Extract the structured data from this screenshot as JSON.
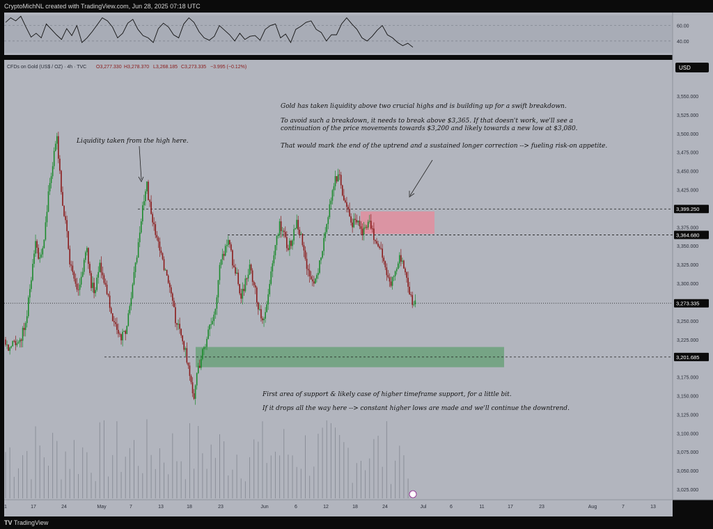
{
  "header": {
    "watermark": "CryptoMichNL created with TradingView.com, Jun 28, 2025 07:18 UTC"
  },
  "footer": {
    "brand": "TradingView"
  },
  "legend": {
    "symbol": "CFDs on Gold (US$ / OZ) · 4h · TVC",
    "open": "O3,277.330",
    "high": "H3,278.370",
    "low": "L3,268.185",
    "close": "C3,273.335",
    "change": "−3.995 (−0.12%)"
  },
  "currency": "USD",
  "annotations": {
    "liquidity_note": "Liquidity taken from the high here.",
    "main_1": "Gold has taken liquidity above two crucial highs and is building up for a swift breakdown.",
    "main_2a": "To avoid such a breakdown, it needs to break above $3,365. If that doesn't work, we'll see a",
    "main_2b": "continuation of the price movements towards $3,200 and likely towards a new low at $3,080.",
    "main_3": "That would mark the end of the uptrend and a sustained longer correction --> fueling risk-on appetite.",
    "support_1": "First area of support & likely case of higher timeframe support, for a little bit.",
    "support_2": "If it drops all the way here --> constant higher lows are made and we'll continue the downtrend."
  },
  "colors": {
    "background": "#b2b5be",
    "up": "#1b8a2c",
    "down": "#8a1a1a",
    "resistance_zone": "#e88a9a",
    "support_zone": "#4f9a5f",
    "axis_text": "#2a2e39",
    "label_bg": "#0b0b0b"
  },
  "chart_data": {
    "type": "candlestick",
    "timeframe": "4h",
    "x_ticks": [
      "1",
      "17",
      "24",
      "May",
      "7",
      "13",
      "18",
      "23",
      "Jun",
      "6",
      "12",
      "18",
      "24",
      "Jul",
      "6",
      "11",
      "17",
      "23",
      "Aug",
      "7",
      "13"
    ],
    "y_ticks": [
      3025,
      3050,
      3075,
      3100,
      3125,
      3150,
      3175,
      3200,
      3225,
      3250,
      3275,
      3300,
      3325,
      3350,
      3375,
      3400,
      3425,
      3450,
      3475,
      3500,
      3525,
      3550
    ],
    "y_tick_labels": [
      "3,025.000",
      "3,050.000",
      "3,075.000",
      "3,100.000",
      "3,125.000",
      "3,150.000",
      "3,175.000",
      "3,200.000",
      "3,225.000",
      "3,250.000",
      "3,275.000",
      "3,300.000",
      "3,325.000",
      "3,350.000",
      "3,375.000",
      "3,400.000",
      "3,425.000",
      "3,450.000",
      "3,475.000",
      "3,500.000",
      "3,525.000",
      "3,550.000"
    ],
    "ylim": [
      3005,
      3590
    ],
    "price_levels": [
      {
        "value": 3399.25,
        "label": "3,399.250",
        "style": "dashed"
      },
      {
        "value": 3364.68,
        "label": "3,364.680",
        "style": "dashed"
      },
      {
        "value": 3273.335,
        "label": "3,273.335",
        "style": "dotted"
      },
      {
        "value": 3201.685,
        "label": "3,201.685",
        "style": "dashed"
      }
    ],
    "zones": [
      {
        "name": "resistance",
        "low": 3366,
        "high": 3396
      },
      {
        "name": "support",
        "low": 3188,
        "high": 3215
      }
    ],
    "price_path": [
      [
        0,
        3225
      ],
      [
        3,
        3210
      ],
      [
        6,
        3228
      ],
      [
        9,
        3215
      ],
      [
        12,
        3235
      ],
      [
        15,
        3260
      ],
      [
        18,
        3310
      ],
      [
        21,
        3350
      ],
      [
        24,
        3330
      ],
      [
        27,
        3360
      ],
      [
        30,
        3420
      ],
      [
        33,
        3460
      ],
      [
        36,
        3495
      ],
      [
        39,
        3420
      ],
      [
        42,
        3380
      ],
      [
        45,
        3330
      ],
      [
        48,
        3300
      ],
      [
        51,
        3290
      ],
      [
        54,
        3320
      ],
      [
        57,
        3345
      ],
      [
        60,
        3300
      ],
      [
        63,
        3290
      ],
      [
        66,
        3330
      ],
      [
        69,
        3300
      ],
      [
        72,
        3285
      ],
      [
        75,
        3250
      ],
      [
        78,
        3240
      ],
      [
        81,
        3225
      ],
      [
        84,
        3235
      ],
      [
        87,
        3270
      ],
      [
        90,
        3310
      ],
      [
        93,
        3350
      ],
      [
        96,
        3400
      ],
      [
        99,
        3430
      ],
      [
        102,
        3390
      ],
      [
        105,
        3370
      ],
      [
        108,
        3345
      ],
      [
        111,
        3320
      ],
      [
        114,
        3300
      ],
      [
        117,
        3270
      ],
      [
        120,
        3245
      ],
      [
        123,
        3230
      ],
      [
        126,
        3210
      ],
      [
        129,
        3180
      ],
      [
        132,
        3150
      ],
      [
        135,
        3185
      ],
      [
        138,
        3210
      ],
      [
        141,
        3225
      ],
      [
        144,
        3250
      ],
      [
        147,
        3270
      ],
      [
        150,
        3320
      ],
      [
        153,
        3340
      ],
      [
        156,
        3360
      ],
      [
        159,
        3330
      ],
      [
        162,
        3310
      ],
      [
        165,
        3285
      ],
      [
        168,
        3300
      ],
      [
        171,
        3320
      ],
      [
        174,
        3300
      ],
      [
        177,
        3265
      ],
      [
        180,
        3250
      ],
      [
        183,
        3275
      ],
      [
        186,
        3320
      ],
      [
        189,
        3350
      ],
      [
        192,
        3380
      ],
      [
        195,
        3370
      ],
      [
        198,
        3345
      ],
      [
        201,
        3360
      ],
      [
        204,
        3385
      ],
      [
        207,
        3360
      ],
      [
        210,
        3330
      ],
      [
        213,
        3310
      ],
      [
        216,
        3300
      ],
      [
        219,
        3320
      ],
      [
        222,
        3350
      ],
      [
        225,
        3385
      ],
      [
        228,
        3410
      ],
      [
        231,
        3440
      ],
      [
        234,
        3445
      ],
      [
        237,
        3410
      ],
      [
        240,
        3395
      ],
      [
        243,
        3380
      ],
      [
        246,
        3385
      ],
      [
        249,
        3370
      ],
      [
        252,
        3375
      ],
      [
        255,
        3390
      ],
      [
        258,
        3360
      ],
      [
        261,
        3350
      ],
      [
        264,
        3335
      ],
      [
        267,
        3310
      ],
      [
        270,
        3300
      ],
      [
        273,
        3320
      ],
      [
        276,
        3335
      ],
      [
        279,
        3325
      ],
      [
        282,
        3300
      ],
      [
        285,
        3275
      ],
      [
        287,
        3273
      ]
    ],
    "rsi": {
      "levels": [
        60,
        40
      ],
      "level_labels": [
        "60.00",
        "40.00"
      ],
      "path": [
        64,
        70,
        66,
        72,
        58,
        45,
        50,
        44,
        62,
        55,
        48,
        42,
        56,
        47,
        60,
        38,
        44,
        52,
        61,
        70,
        66,
        58,
        44,
        50,
        63,
        68,
        55,
        47,
        44,
        38,
        56,
        63,
        58,
        48,
        44,
        62,
        70,
        64,
        52,
        44,
        41,
        46,
        60,
        54,
        48,
        40,
        50,
        42,
        46,
        47,
        41,
        55,
        60,
        62,
        44,
        49,
        38,
        55,
        59,
        64,
        66,
        55,
        51,
        40,
        48,
        48,
        62,
        70,
        62,
        55,
        44,
        40,
        46,
        54,
        60,
        48,
        44,
        38,
        34,
        37,
        32
      ]
    },
    "volume": {
      "bars": 95
    }
  }
}
